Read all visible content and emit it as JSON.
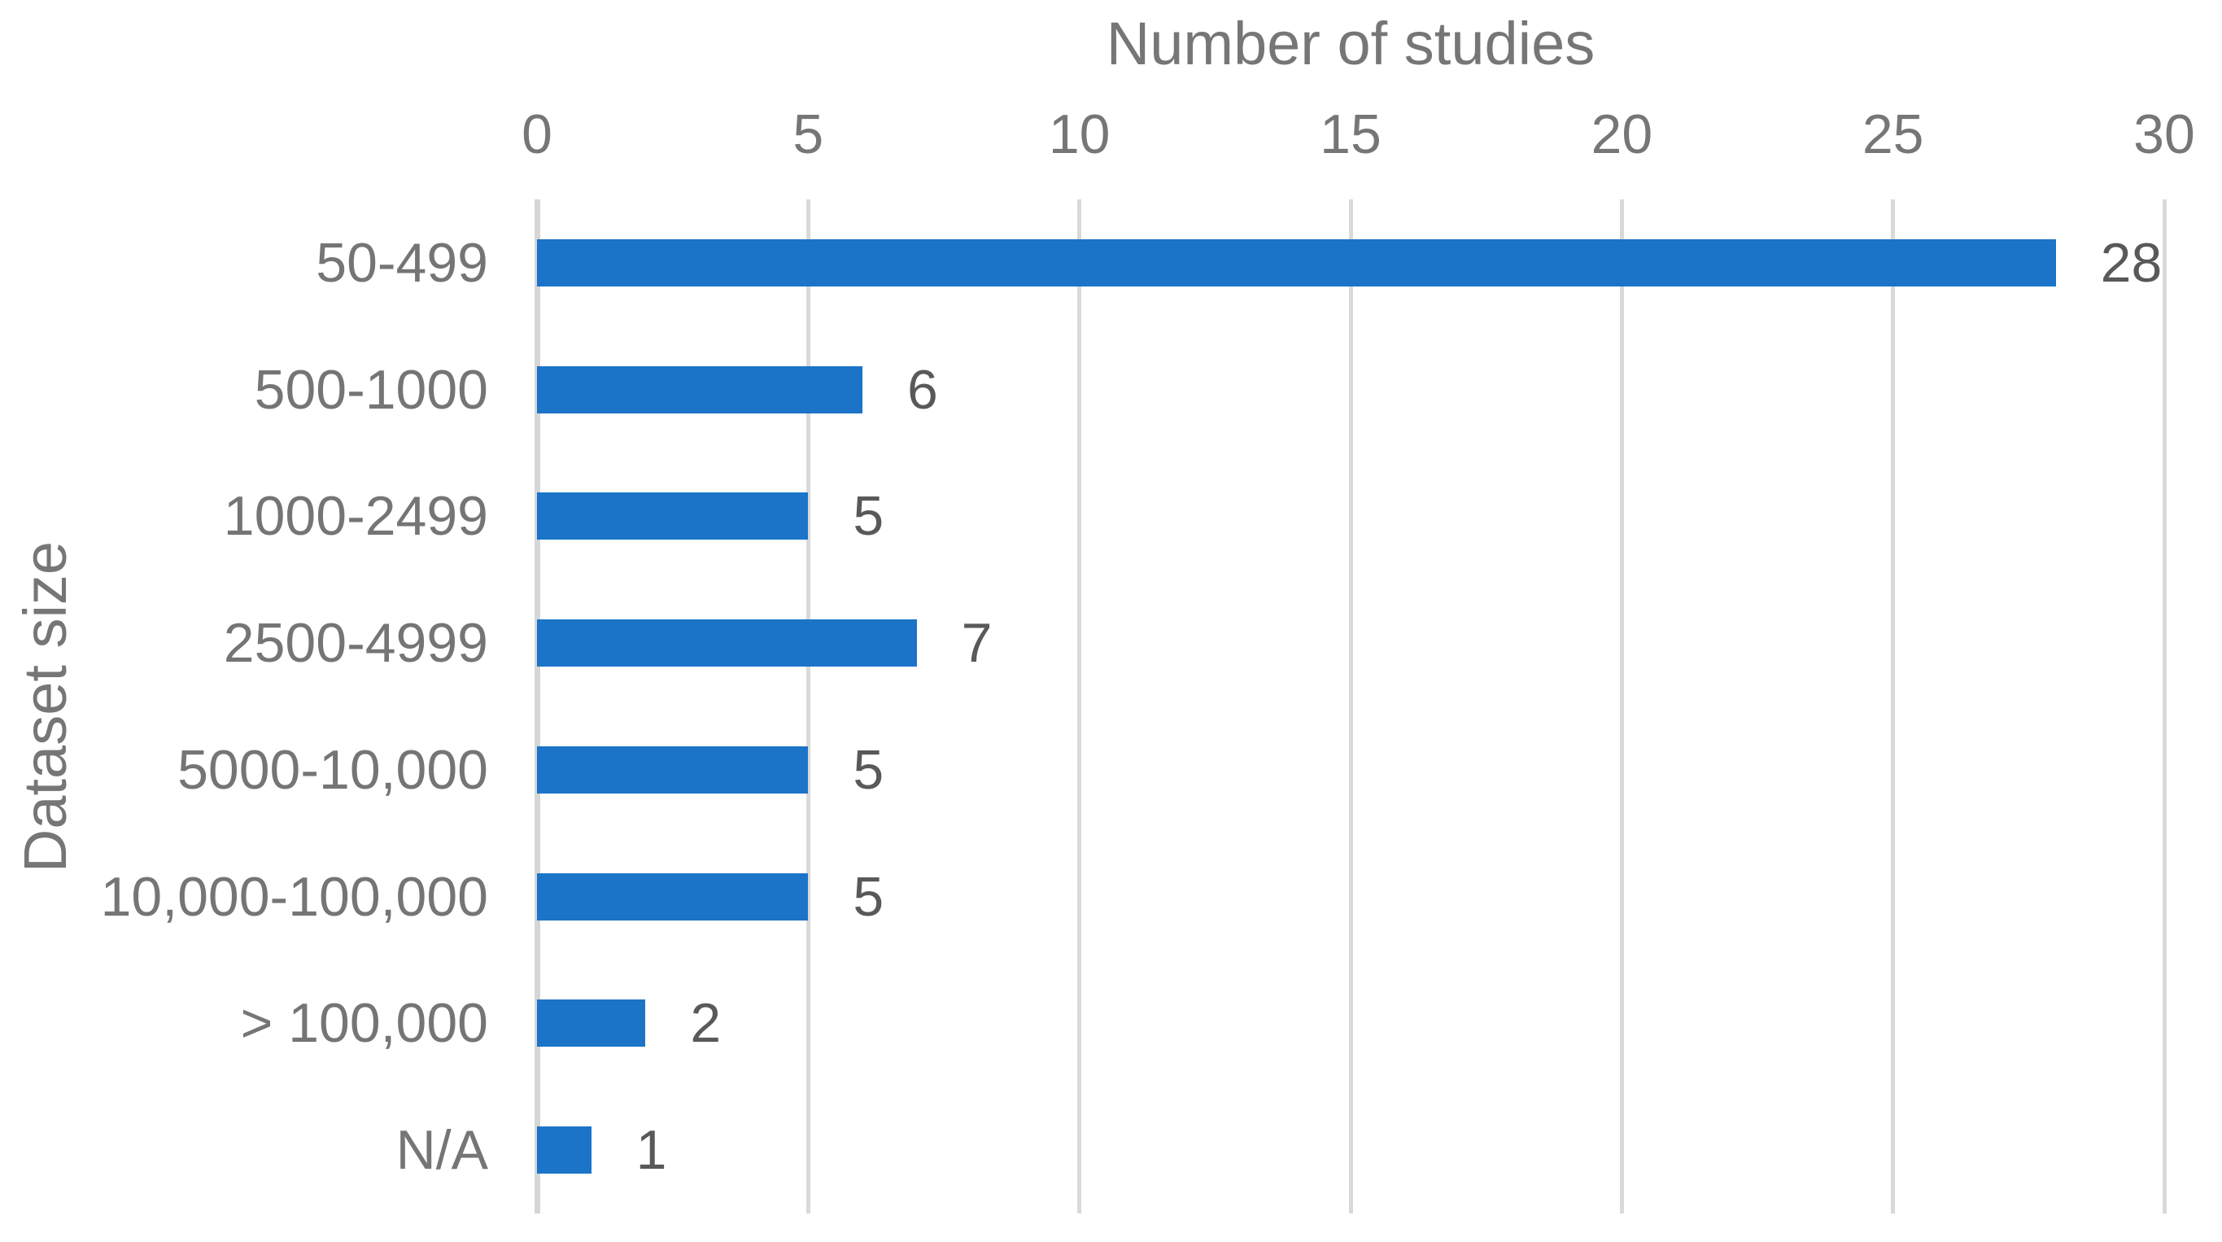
{
  "chart_data": {
    "type": "bar",
    "orientation": "horizontal",
    "title": "Number of studies",
    "xlabel": "Number of studies",
    "ylabel": "Dataset size",
    "categories": [
      "50-499",
      "500-1000",
      "1000-2499",
      "2500-4999",
      "5000-10,000",
      "10,000-100,000",
      "> 100,000",
      "N/A"
    ],
    "values": [
      28,
      6,
      5,
      7,
      5,
      5,
      2,
      1
    ],
    "xlim": [
      0,
      30
    ],
    "xticks": [
      0,
      5,
      10,
      15,
      20,
      25,
      30
    ],
    "grid": "vertical-only",
    "legend": "none",
    "data_labels": true,
    "colors": {
      "bar": "#1B74C8",
      "gridline": "#D9D9D9",
      "axis_line": "#D6D6D6",
      "axis_text": "#767676",
      "category_text": "#757575",
      "value_text": "#595959",
      "background": "#FFFFFF"
    }
  }
}
